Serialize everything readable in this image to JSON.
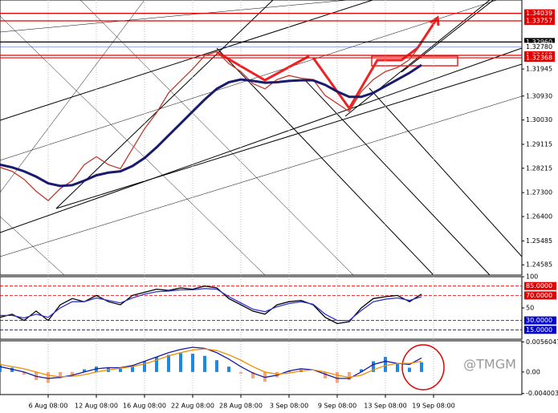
{
  "watermark": "@TMGM",
  "chart_data": [
    {
      "type": "line",
      "categories": [
        null,
        null,
        null,
        null,
        "6 Aug 08:00",
        null,
        null,
        null,
        "12 Aug 08:00",
        null,
        null,
        null,
        "16 Aug 08:00",
        null,
        null,
        null,
        "22 Aug 08:00",
        null,
        null,
        null,
        "28 Aug 08:00",
        null,
        null,
        null,
        "3 Sep 08:00",
        null,
        null,
        null,
        "9 Sep 08:00",
        null,
        null,
        null,
        "13 Sep 08:00",
        null,
        null,
        null,
        "19 Sep 08:00"
      ],
      "series": [
        {
          "color": "#c0392b",
          "values": [
            1.2825,
            1.281,
            1.278,
            1.2735,
            1.27,
            1.2745,
            1.2775,
            1.2835,
            1.2865,
            1.2835,
            1.282,
            1.2895,
            1.297,
            1.303,
            1.3105,
            1.315,
            1.3195,
            1.3245,
            1.326,
            1.3215,
            1.3185,
            1.314,
            1.312,
            1.3155,
            1.317,
            1.316,
            1.3155,
            1.3095,
            1.3065,
            1.3035,
            1.311,
            1.3155,
            1.3185,
            1.32,
            1.323,
            1.329,
            null
          ]
        },
        {
          "color": "#1a1a6e",
          "values": [
            1.2835,
            1.2825,
            1.281,
            1.279,
            1.2765,
            1.2755,
            1.2758,
            1.2775,
            1.2795,
            1.2805,
            1.281,
            1.283,
            1.286,
            1.29,
            1.2945,
            1.299,
            1.3035,
            1.308,
            1.312,
            1.3145,
            1.3155,
            1.315,
            1.3143,
            1.3145,
            1.315,
            1.3152,
            1.3152,
            1.3135,
            1.311,
            1.309,
            1.309,
            1.3105,
            1.313,
            1.3155,
            1.318,
            1.321,
            null
          ]
        }
      ],
      "ylim": [
        1.242,
        1.3454
      ],
      "yticks": [
        1.31945,
        {
          "value": 1.3093,
          "label": "1.30930"
        },
        {
          "value": 1.3003,
          "label": "1.30030"
        },
        1.29115,
        1.28215,
        {
          "value": 1.273,
          "label": "1.27300"
        },
        {
          "value": 1.264,
          "label": "1.26400"
        },
        1.25485,
        1.24585
      ],
      "price_labels": [
        {
          "value": 1.34039,
          "label": "1.34039",
          "color": "#e00000"
        },
        {
          "value": 1.33757,
          "label": "1.33757",
          "color": "#e00000"
        },
        {
          "value": 1.3296,
          "label": "1.32960",
          "color": "#000000"
        },
        {
          "value": 1.3278,
          "label": "1.32780",
          "color": "#ffffff"
        },
        {
          "value": 1.3246,
          "label": "1.32460",
          "color": "#e00000"
        },
        {
          "value": 1.32368,
          "label": "1.32368",
          "color": "#e00000"
        }
      ]
    },
    {
      "type": "line",
      "series": [
        {
          "color": "#000000",
          "values": [
            35,
            40,
            30,
            45,
            30,
            55,
            65,
            60,
            70,
            60,
            55,
            70,
            75,
            80,
            78,
            82,
            80,
            85,
            82,
            65,
            55,
            45,
            40,
            55,
            60,
            62,
            55,
            35,
            25,
            28,
            50,
            65,
            68,
            70,
            60,
            72,
            null
          ]
        },
        {
          "color": "#3333cc",
          "values": [
            38,
            38,
            34,
            40,
            35,
            50,
            60,
            60,
            66,
            62,
            58,
            66,
            72,
            76,
            77,
            79,
            79,
            81,
            80,
            68,
            58,
            48,
            44,
            52,
            57,
            60,
            56,
            40,
            30,
            30,
            46,
            60,
            64,
            66,
            62,
            68,
            null
          ]
        }
      ],
      "ylim": [
        0,
        100
      ],
      "yticks": [
        100,
        50
      ],
      "levels": [
        {
          "value": 85,
          "label": "85.0000",
          "color": "#e00000"
        },
        {
          "value": 70,
          "label": "70.0000",
          "color": "#e00000"
        },
        {
          "value": 30,
          "label": "30.0000",
          "color": "#0000cc"
        },
        {
          "value": 15,
          "label": "15.0000",
          "color": "#0000cc"
        }
      ]
    },
    {
      "type": "bar",
      "values": [
        0.0015,
        0.0008,
        -0.0005,
        -0.0015,
        -0.002,
        -0.0012,
        -0.0005,
        0.0005,
        0.001,
        0.0008,
        0.0006,
        0.0012,
        0.002,
        0.0028,
        0.0032,
        0.0035,
        0.0034,
        0.003,
        0.0022,
        0.001,
        -0.0003,
        -0.0012,
        -0.0018,
        -0.001,
        0.0002,
        0.0004,
        0,
        -0.0012,
        -0.002,
        -0.0015,
        0.0005,
        0.002,
        0.0028,
        0.0015,
        0.0008,
        0.0018,
        null
      ],
      "color": "#1e88e5",
      "negative_color": "#f4a582",
      "series": [
        {
          "color": "#1a1a9e",
          "values": [
            0.001,
            0.0005,
            0,
            -0.0008,
            -0.0012,
            -0.001,
            -0.0006,
            0,
            0.0006,
            0.0008,
            0.0008,
            0.0012,
            0.002,
            0.0028,
            0.0036,
            0.0042,
            0.0046,
            0.0044,
            0.0036,
            0.0024,
            0.001,
            -0.0002,
            -0.001,
            -0.0006,
            0.0002,
            0.0006,
            0.0004,
            -0.0004,
            -0.0012,
            -0.0012,
            0,
            0.0014,
            0.002,
            0.0016,
            0.0014,
            0.0026,
            null
          ]
        },
        {
          "color": "#f08c00",
          "values": [
            0.0014,
            0.001,
            0.0006,
            0,
            -0.0006,
            -0.0009,
            -0.0008,
            -0.0005,
            0,
            0.0004,
            0.0007,
            0.001,
            0.0015,
            0.0022,
            0.003,
            0.0036,
            0.0041,
            0.0043,
            0.004,
            0.0032,
            0.0022,
            0.001,
            0,
            -0.0004,
            -0.0002,
            0.0002,
            0.0004,
            0,
            -0.0006,
            -0.001,
            -0.0006,
            0.0004,
            0.0012,
            0.0016,
            0.0016,
            0.002,
            null
          ]
        }
      ],
      "ylim": [
        -0.0042,
        0.0058
      ],
      "yticks": [
        0.0056047,
        {
          "value": 0,
          "label": "0.00"
        },
        -0.0040036
      ]
    }
  ]
}
